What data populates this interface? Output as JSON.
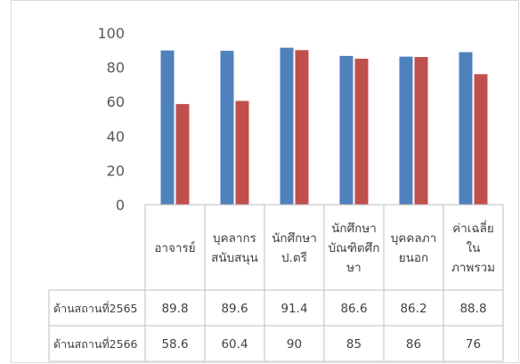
{
  "chart_data": {
    "type": "bar",
    "categories": [
      [
        "อาจารย์"
      ],
      [
        "บุคลากร",
        "สนับสนุน"
      ],
      [
        "นักศึกษา",
        "ป.ตรี"
      ],
      [
        "นักศึกษา",
        "บัณฑิตศึก",
        "ษา"
      ],
      [
        "บุคคลภา",
        "ยนอก"
      ],
      [
        "ค่าเฉลี่ย",
        "ใน",
        "ภาพรวม"
      ]
    ],
    "series": [
      {
        "name": "ด้านสถานที่2565",
        "color": "#4f81bd",
        "values": [
          89.8,
          89.6,
          91.4,
          86.6,
          86.2,
          88.8
        ]
      },
      {
        "name": "ด้านสถานที่2566",
        "color": "#c0504d",
        "values": [
          58.6,
          60.4,
          90,
          85,
          86,
          76
        ]
      }
    ],
    "ylim": [
      0,
      100
    ],
    "yticks": [
      0,
      20,
      40,
      60,
      80,
      100
    ],
    "grid": false,
    "legend": "data-table"
  }
}
